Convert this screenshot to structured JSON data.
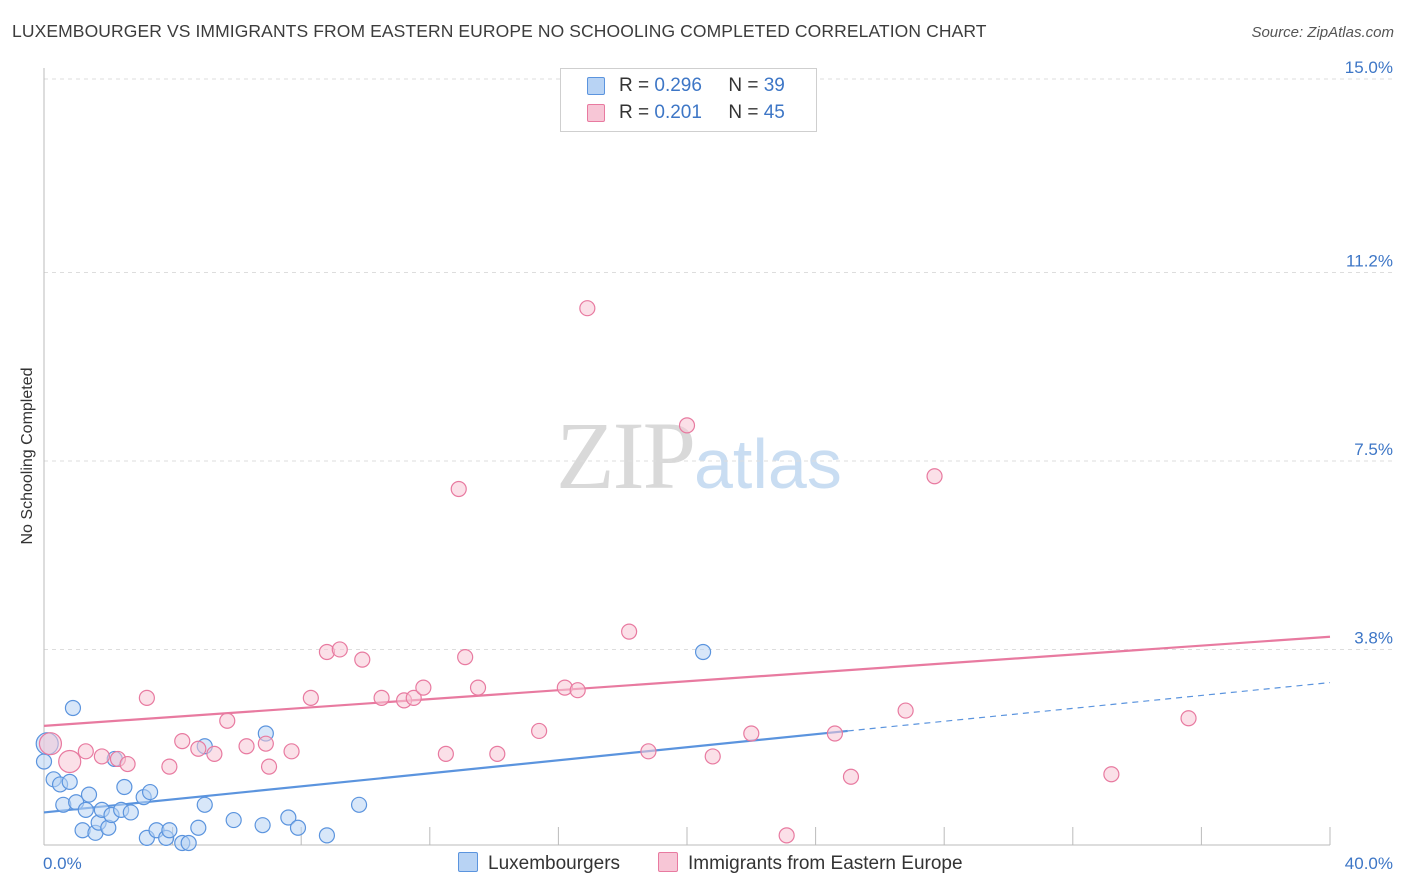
{
  "title": "LUXEMBOURGER VS IMMIGRANTS FROM EASTERN EUROPE NO SCHOOLING COMPLETED CORRELATION CHART",
  "source": "Source: ZipAtlas.com",
  "watermark": {
    "zip": "ZIP",
    "atlas": "atlas"
  },
  "legend": {
    "rows": [
      {
        "r_label": "R =",
        "r_value": "0.296",
        "n_label": "N =",
        "n_value": "39"
      },
      {
        "r_label": "R =",
        "r_value": "0.201",
        "n_label": "N =",
        "n_value": "45"
      }
    ]
  },
  "bottom_legend": [
    "Luxembourgers",
    "Immigrants from Eastern Europe"
  ],
  "chart_data": {
    "type": "scatter",
    "title": "LUXEMBOURGER VS IMMIGRANTS FROM EASTERN EUROPE NO SCHOOLING COMPLETED CORRELATION CHART",
    "xlabel": "",
    "ylabel": "No Schooling Completed",
    "xlim": [
      0,
      40
    ],
    "ylim": [
      0,
      15.4
    ],
    "x_tick_labels": [
      "0.0%",
      "40.0%"
    ],
    "y_ticks": [
      3.8,
      7.5,
      11.2,
      15.0
    ],
    "y_tick_labels": [
      "3.8%",
      "7.5%",
      "11.2%",
      "15.0%"
    ],
    "grid": "horizontal dashed",
    "legend_position": "top-center",
    "colors": {
      "luxembourgers": "#5b94de",
      "eastern_europe": "#e87aa0",
      "tick_text": "#3d76c6"
    },
    "series": [
      {
        "name": "Luxembourgers",
        "color": "#5b94de",
        "fill": "#b8d3f4",
        "trend": {
          "x": [
            0,
            25
          ],
          "y": [
            0.6,
            2.2
          ]
        },
        "trend_dashed_extension": {
          "x": [
            25,
            40
          ],
          "y": [
            2.2,
            3.15
          ]
        },
        "points": [
          [
            0.1,
            1.95
          ],
          [
            0.3,
            1.25
          ],
          [
            0.5,
            1.15
          ],
          [
            0.6,
            0.75
          ],
          [
            0.8,
            1.2
          ],
          [
            0.9,
            2.65
          ],
          [
            1.0,
            0.8
          ],
          [
            1.2,
            0.25
          ],
          [
            1.3,
            0.65
          ],
          [
            1.4,
            0.95
          ],
          [
            1.6,
            0.2
          ],
          [
            1.7,
            0.4
          ],
          [
            1.8,
            0.65
          ],
          [
            2.0,
            0.3
          ],
          [
            2.1,
            0.55
          ],
          [
            2.2,
            1.65
          ],
          [
            2.4,
            0.65
          ],
          [
            2.5,
            1.1
          ],
          [
            2.7,
            0.6
          ],
          [
            3.1,
            0.9
          ],
          [
            3.2,
            0.1
          ],
          [
            3.3,
            1.0
          ],
          [
            3.5,
            0.25
          ],
          [
            3.8,
            0.1
          ],
          [
            3.9,
            0.25
          ],
          [
            4.3,
            0.0
          ],
          [
            4.5,
            0.0
          ],
          [
            4.8,
            0.3
          ],
          [
            5.0,
            1.9
          ],
          [
            5.0,
            0.75
          ],
          [
            5.9,
            0.45
          ],
          [
            6.8,
            0.35
          ],
          [
            6.9,
            2.15
          ],
          [
            7.6,
            0.5
          ],
          [
            7.9,
            0.3
          ],
          [
            8.8,
            0.15
          ],
          [
            9.8,
            0.75
          ],
          [
            20.5,
            3.75
          ],
          [
            0.0,
            1.6
          ]
        ]
      },
      {
        "name": "Immigrants from Eastern Europe",
        "color": "#e87aa0",
        "fill": "#f7c6d6",
        "trend": {
          "x": [
            0,
            40
          ],
          "y": [
            2.3,
            4.05
          ]
        },
        "points": [
          [
            0.2,
            1.95
          ],
          [
            0.8,
            1.6
          ],
          [
            1.3,
            1.8
          ],
          [
            1.8,
            1.7
          ],
          [
            2.3,
            1.65
          ],
          [
            2.6,
            1.55
          ],
          [
            3.2,
            2.85
          ],
          [
            3.9,
            1.5
          ],
          [
            4.3,
            2.0
          ],
          [
            4.8,
            1.85
          ],
          [
            5.3,
            1.75
          ],
          [
            5.7,
            2.4
          ],
          [
            6.3,
            1.9
          ],
          [
            6.9,
            1.95
          ],
          [
            7.0,
            1.5
          ],
          [
            7.7,
            1.8
          ],
          [
            8.3,
            2.85
          ],
          [
            8.8,
            3.75
          ],
          [
            9.2,
            3.8
          ],
          [
            9.9,
            3.6
          ],
          [
            10.5,
            2.85
          ],
          [
            11.2,
            2.8
          ],
          [
            11.5,
            2.85
          ],
          [
            11.8,
            3.05
          ],
          [
            12.5,
            1.75
          ],
          [
            12.9,
            6.95
          ],
          [
            13.1,
            3.65
          ],
          [
            13.5,
            3.05
          ],
          [
            14.1,
            1.75
          ],
          [
            15.4,
            2.2
          ],
          [
            16.2,
            3.05
          ],
          [
            16.6,
            3.0
          ],
          [
            16.9,
            10.5
          ],
          [
            18.2,
            4.15
          ],
          [
            18.8,
            1.8
          ],
          [
            20.0,
            8.2
          ],
          [
            20.8,
            1.7
          ],
          [
            22.0,
            2.15
          ],
          [
            23.1,
            0.15
          ],
          [
            24.6,
            2.15
          ],
          [
            25.1,
            1.3
          ],
          [
            26.8,
            2.6
          ],
          [
            27.7,
            7.2
          ],
          [
            33.2,
            1.35
          ],
          [
            35.6,
            2.45
          ]
        ]
      }
    ]
  }
}
